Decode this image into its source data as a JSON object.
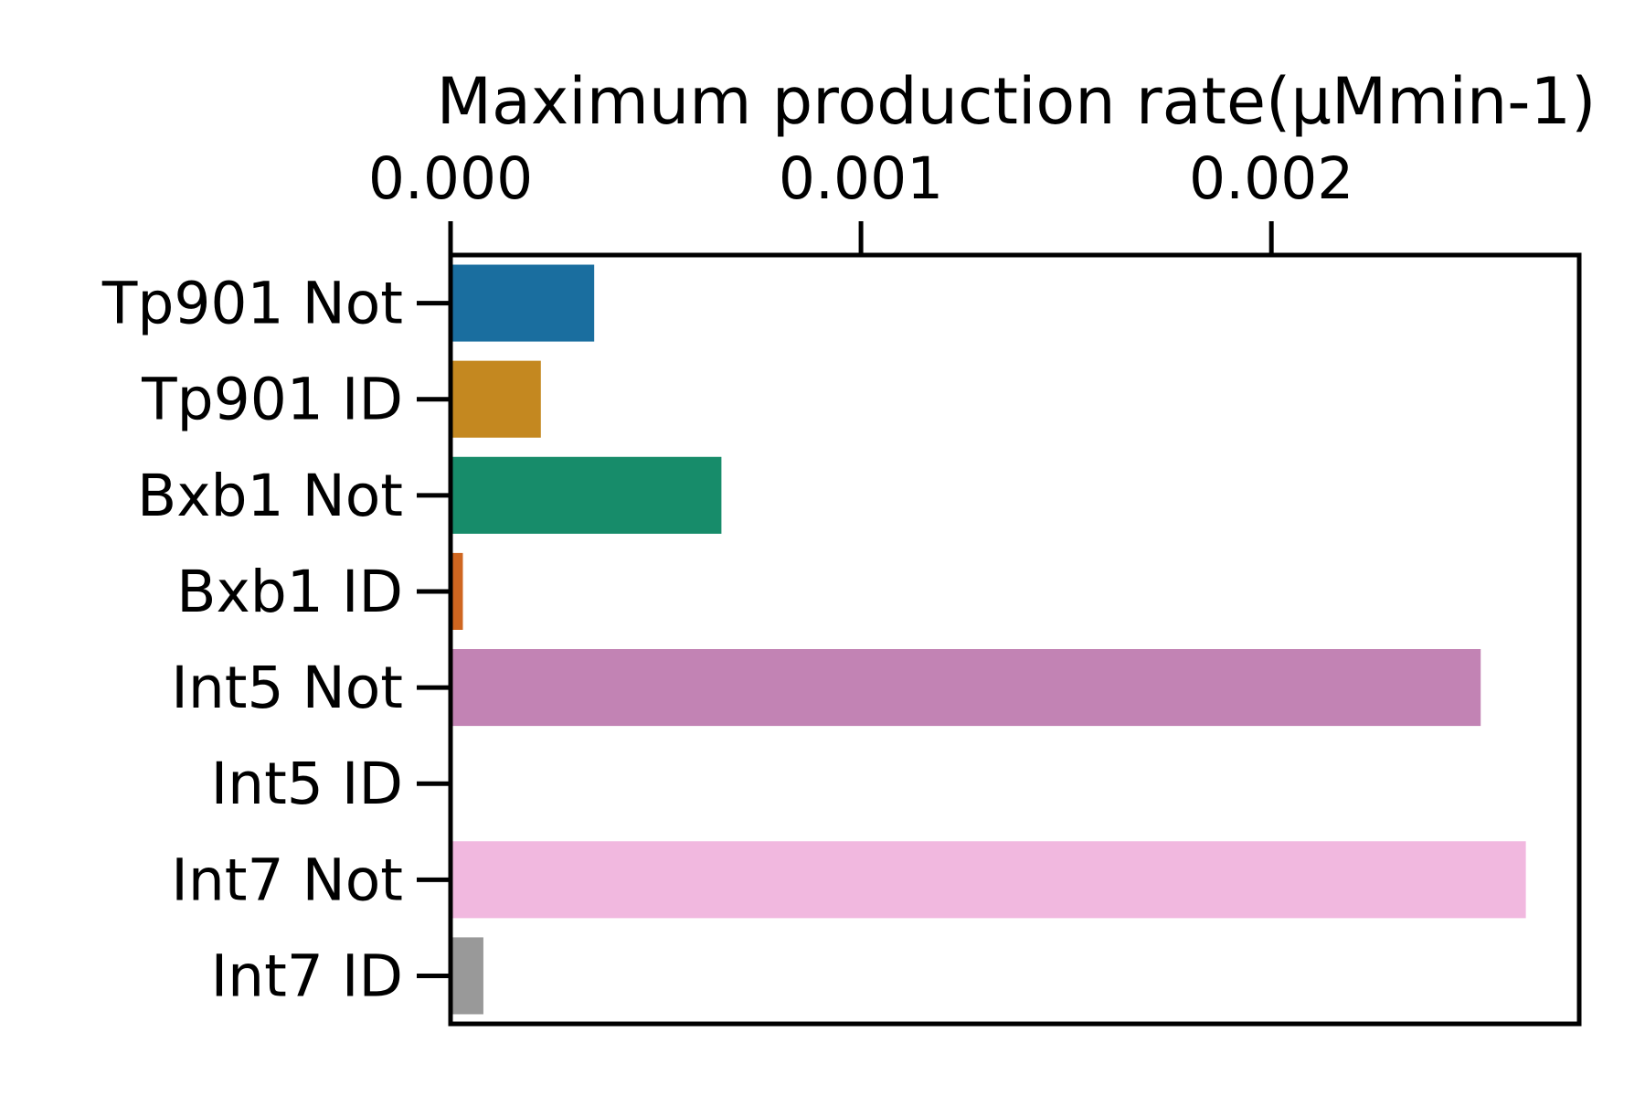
{
  "chart_data": {
    "type": "bar",
    "orientation": "horizontal",
    "xlabel": "Maximum production rate(µMmin-1)",
    "xaxis_position": "top",
    "xlim": [
      0.0,
      0.00275
    ],
    "xticks": [
      0.0,
      0.001,
      0.002
    ],
    "xtick_labels": [
      "0.000",
      "0.001",
      "0.002"
    ],
    "categories": [
      "Tp901 Not",
      "Tp901 ID",
      "Bxb1 Not",
      "Bxb1 ID",
      "Int5 Not",
      "Int5 ID",
      "Int7 Not",
      "Int7 ID"
    ],
    "values": [
      0.00035,
      0.00022,
      0.00066,
      3e-05,
      0.00251,
      0.0,
      0.00262,
      8e-05
    ],
    "colors": [
      "#1a6e9f",
      "#c48820",
      "#178c6a",
      "#cf6620",
      "#c283b4",
      "#f2b8cc",
      "#f1b8df",
      "#999999"
    ],
    "grid": false
  }
}
